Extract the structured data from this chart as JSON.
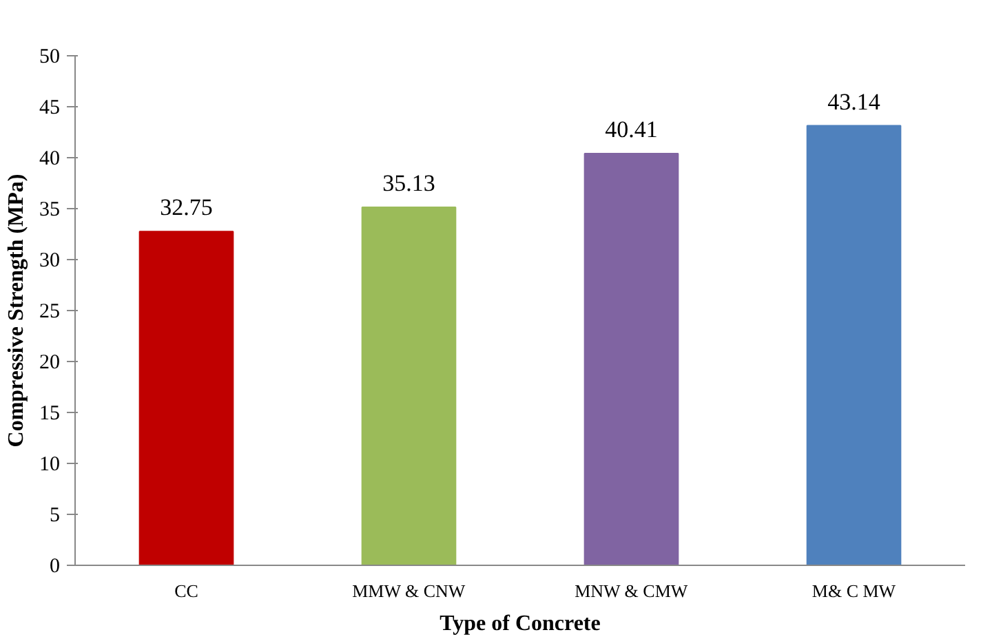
{
  "chart_data": {
    "type": "bar",
    "categories": [
      "CC",
      "MMW & CNW",
      "MNW & CMW",
      "M& C MW"
    ],
    "values": [
      32.75,
      35.13,
      40.41,
      43.14
    ],
    "colors": [
      "#c00000",
      "#9bbb59",
      "#8064a2",
      "#4f81bd"
    ],
    "xlabel": "Type of Concrete",
    "ylabel": "Compressive Strength (MPa)",
    "ylim": [
      0,
      50
    ],
    "yticks": [
      0,
      5,
      10,
      15,
      20,
      25,
      30,
      35,
      40,
      45,
      50
    ],
    "data_labels": true,
    "grid": false
  }
}
